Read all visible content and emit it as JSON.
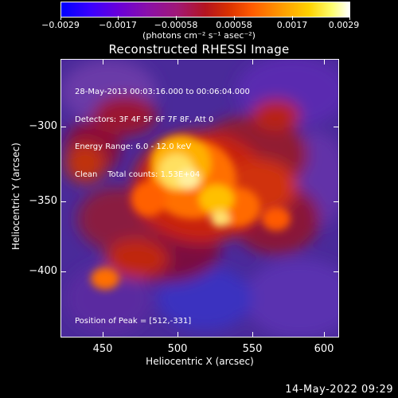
{
  "colorbar": {
    "tick_labels": [
      "−0.0029",
      "−0.0017",
      "−0.00058",
      "0.00058",
      "0.0017",
      "0.0029"
    ],
    "units": "(photons cm⁻² s⁻¹ asec⁻²)"
  },
  "title": "Reconstructed RHESSI Image",
  "info": {
    "time_range": "28-May-2013 00:03:16.000 to 00:06:04.000",
    "detectors": "Detectors: 3F 4F 5F 6F 7F 8F, Att 0",
    "energy": "Energy Range: 6.0 - 12.0 keV",
    "clean": "Clean    Total counts: 1.53E+04"
  },
  "peak_label": "Position of Peak = [512,-331]",
  "axes": {
    "x_label": "Heliocentric X (arcsec)",
    "y_label": "Heliocentric Y (arcsec)",
    "x_ticks": [
      "450",
      "500",
      "550",
      "600"
    ],
    "y_ticks": [
      "−300",
      "−350",
      "−400"
    ]
  },
  "timestamp": "14-May-2022 09:29"
}
